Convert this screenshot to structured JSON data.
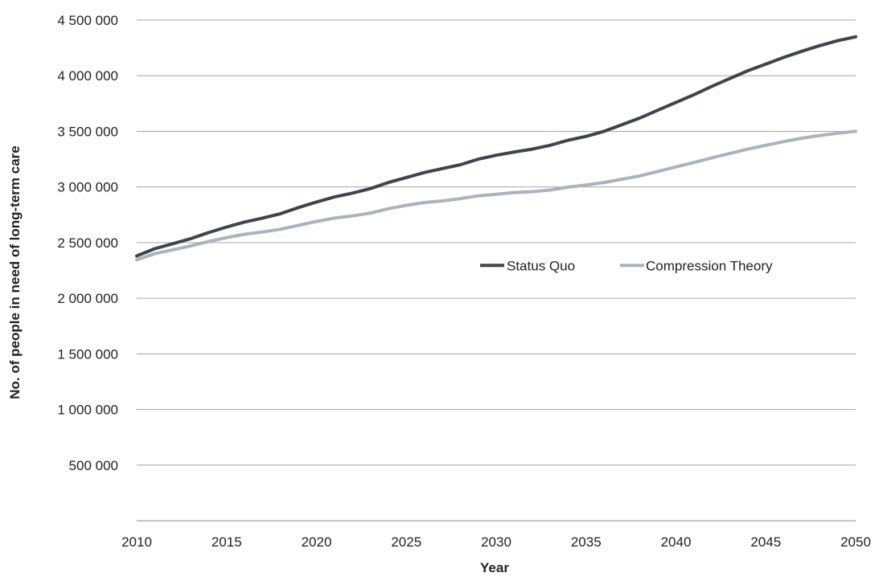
{
  "chart_data": {
    "type": "line",
    "title": "",
    "xlabel": "Year",
    "ylabel": "No. of people in need of long-term care",
    "xlim": [
      2010,
      2050
    ],
    "ylim": [
      0,
      4500000
    ],
    "x_ticks": [
      2010,
      2015,
      2020,
      2025,
      2030,
      2035,
      2040,
      2045,
      2050
    ],
    "x_tick_labels": [
      "2010",
      "2015",
      "2020",
      "2025",
      "2030",
      "2035",
      "2040",
      "2045",
      "2050"
    ],
    "y_ticks": [
      500000,
      1000000,
      1500000,
      2000000,
      2500000,
      3000000,
      3500000,
      4000000,
      4500000
    ],
    "y_tick_labels": [
      "500 000",
      "1 000 000",
      "1 500 000",
      "2 000 000",
      "2 500 000",
      "3 000 000",
      "3 500 000",
      "4 000 000",
      "4 500 000"
    ],
    "grid": true,
    "legend_position": "center-right",
    "x": [
      2010,
      2011,
      2012,
      2013,
      2014,
      2015,
      2016,
      2017,
      2018,
      2019,
      2020,
      2021,
      2022,
      2023,
      2024,
      2025,
      2026,
      2027,
      2028,
      2029,
      2030,
      2031,
      2032,
      2033,
      2034,
      2035,
      2036,
      2037,
      2038,
      2039,
      2040,
      2041,
      2042,
      2043,
      2044,
      2045,
      2046,
      2047,
      2048,
      2049,
      2050
    ],
    "series": [
      {
        "name": "Status Quo",
        "color": "#3d454c",
        "values": [
          2380000,
          2445000,
          2490000,
          2535000,
          2590000,
          2640000,
          2685000,
          2720000,
          2760000,
          2815000,
          2865000,
          2910000,
          2945000,
          2985000,
          3040000,
          3085000,
          3130000,
          3165000,
          3200000,
          3250000,
          3285000,
          3315000,
          3340000,
          3375000,
          3420000,
          3455000,
          3500000,
          3560000,
          3620000,
          3690000,
          3760000,
          3830000,
          3905000,
          3975000,
          4045000,
          4105000,
          4165000,
          4220000,
          4270000,
          4315000,
          4350000
        ]
      },
      {
        "name": "Compression Theory",
        "color": "#a9b4bc",
        "values": [
          2345000,
          2400000,
          2435000,
          2470000,
          2510000,
          2545000,
          2575000,
          2595000,
          2620000,
          2655000,
          2690000,
          2720000,
          2740000,
          2765000,
          2805000,
          2835000,
          2860000,
          2875000,
          2895000,
          2920000,
          2935000,
          2950000,
          2958000,
          2972000,
          2998000,
          3018000,
          3040000,
          3070000,
          3100000,
          3140000,
          3180000,
          3220000,
          3262000,
          3302000,
          3340000,
          3375000,
          3408000,
          3438000,
          3463000,
          3483000,
          3500000
        ]
      }
    ]
  }
}
